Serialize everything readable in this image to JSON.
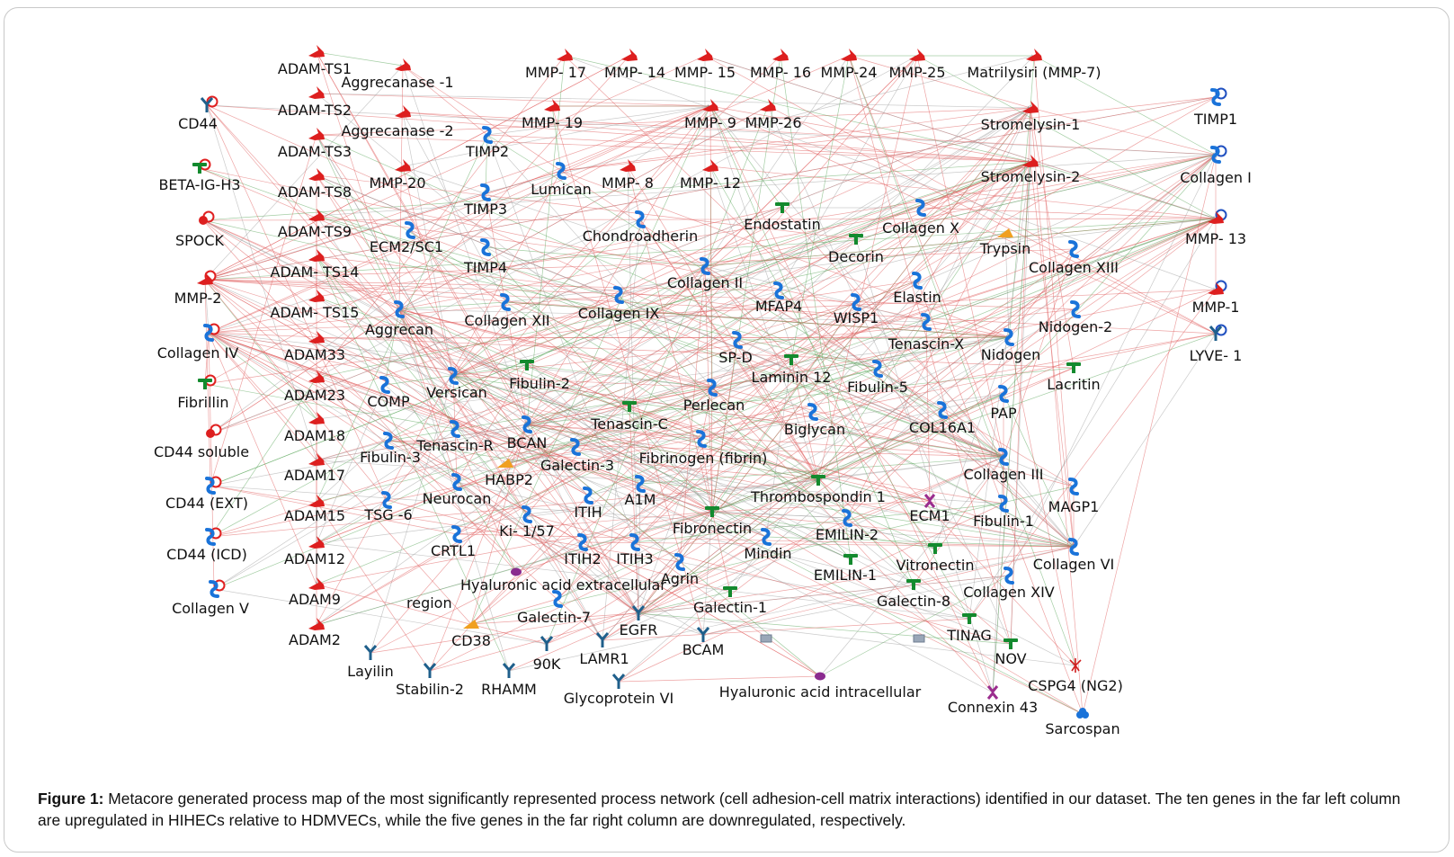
{
  "colors": {
    "activation": "#e05a5a",
    "inhibition": "#5aa65a",
    "neutral": "#a0a0a0",
    "receptor": "#1f5f8b",
    "enzyme": "#dd1f1f",
    "protein": "#1a73d9",
    "ligand": "#138a2e"
  },
  "caption": {
    "label": "Figure 1:",
    "text": "Metacore generated process map of the most significantly represented process network (cell adhesion-cell matrix interactions) identified in our dataset. The ten genes in the far left column are upregulated in HIHECs relative to HDMVECs, while the five genes in the far right column are downregulated, respectively."
  },
  "nodes": [
    {
      "id": "cd44",
      "label": "CD44",
      "icon": "receptor-icon",
      "badge": "up"
    },
    {
      "id": "betaig",
      "label": "BETA-IG-H3",
      "icon": "ligand-icon",
      "badge": "up"
    },
    {
      "id": "spock",
      "label": "SPOCK",
      "icon": "circle-icon",
      "badge": "up"
    },
    {
      "id": "mmp2",
      "label": "MMP-2",
      "icon": "protease-icon",
      "badge": "up"
    },
    {
      "id": "col4",
      "label": "Collagen IV",
      "icon": "protein-icon",
      "badge": "up"
    },
    {
      "id": "fibrillin",
      "label": "Fibrillin",
      "icon": "ligand-icon",
      "badge": "up"
    },
    {
      "id": "cd44sol",
      "label": "CD44 soluble",
      "icon": "circle-icon",
      "badge": "up"
    },
    {
      "id": "cd44ext",
      "label": "CD44 (EXT)",
      "icon": "protein-icon",
      "badge": "up"
    },
    {
      "id": "cd44icd",
      "label": "CD44 (ICD)",
      "icon": "protein-icon",
      "badge": "up"
    },
    {
      "id": "col5",
      "label": "Collagen V",
      "icon": "protein-icon",
      "badge": "up"
    },
    {
      "id": "adamts1",
      "label": "ADAM-TS1",
      "icon": "protease-icon"
    },
    {
      "id": "adamts2",
      "label": "ADAM-TS2",
      "icon": "protease-icon"
    },
    {
      "id": "adamts3",
      "label": "ADAM-TS3",
      "icon": "protease-icon"
    },
    {
      "id": "adamts8",
      "label": "ADAM-TS8",
      "icon": "protease-icon"
    },
    {
      "id": "adamts9",
      "label": "ADAM-TS9",
      "icon": "protease-icon"
    },
    {
      "id": "adamts14",
      "label": "ADAM- TS14",
      "icon": "protease-icon"
    },
    {
      "id": "adamts15",
      "label": "ADAM- TS15",
      "icon": "protease-icon"
    },
    {
      "id": "adam33",
      "label": "ADAM33",
      "icon": "protease-icon"
    },
    {
      "id": "adam23",
      "label": "ADAM23",
      "icon": "protease-icon"
    },
    {
      "id": "adam18",
      "label": "ADAM18",
      "icon": "protease-icon"
    },
    {
      "id": "adam17",
      "label": "ADAM17",
      "icon": "protease-icon"
    },
    {
      "id": "adam15",
      "label": "ADAM15",
      "icon": "protease-icon"
    },
    {
      "id": "adam12",
      "label": "ADAM12",
      "icon": "protease-icon"
    },
    {
      "id": "adam9",
      "label": "ADAM9",
      "icon": "protease-icon"
    },
    {
      "id": "adam2",
      "label": "ADAM2",
      "icon": "protease-icon"
    },
    {
      "id": "aggr1",
      "label": "Aggrecanase -1",
      "icon": "protease-icon"
    },
    {
      "id": "aggr2",
      "label": "Aggrecanase -2",
      "icon": "protease-icon"
    },
    {
      "id": "mmp20",
      "label": "MMP-20",
      "icon": "protease-icon"
    },
    {
      "id": "ecm2",
      "label": "ECM2/SC1",
      "icon": "protein-icon"
    },
    {
      "id": "aggrecan",
      "label": "Aggrecan",
      "icon": "protein-icon"
    },
    {
      "id": "comp",
      "label": "COMP",
      "icon": "protein-icon"
    },
    {
      "id": "fibulin3",
      "label": "Fibulin-3",
      "icon": "protein-icon"
    },
    {
      "id": "tsg6",
      "label": "TSG -6",
      "icon": "protein-icon"
    },
    {
      "id": "crtl1",
      "label": "CRTL1",
      "icon": "protein-icon"
    },
    {
      "id": "versican",
      "label": "Versican",
      "icon": "protein-icon"
    },
    {
      "id": "tenascinr",
      "label": "Tenascin-R",
      "icon": "protein-icon"
    },
    {
      "id": "neurocan",
      "label": "Neurocan",
      "icon": "protein-icon"
    },
    {
      "id": "habp2",
      "label": "HABP2",
      "icon": "enzyme-icon"
    },
    {
      "id": "ki157",
      "label": "Ki- 1/57",
      "icon": "protein-icon"
    },
    {
      "id": "hyaext",
      "label": "Hyaluronic acid extracellular",
      "label2": "region",
      "icon": "compound-icon"
    },
    {
      "id": "cd38",
      "label": "CD38",
      "icon": "enzyme-icon"
    },
    {
      "id": "layilin",
      "label": "Layilin",
      "icon": "receptor-icon"
    },
    {
      "id": "stabilin2",
      "label": "Stabilin-2",
      "icon": "receptor-icon"
    },
    {
      "id": "rhamm",
      "label": "RHAMM",
      "icon": "receptor-icon"
    },
    {
      "id": "k90",
      "label": "90K",
      "icon": "receptor-icon"
    },
    {
      "id": "timp2",
      "label": "TIMP2",
      "icon": "protein-icon"
    },
    {
      "id": "timp3",
      "label": "TIMP3",
      "icon": "protein-icon"
    },
    {
      "id": "timp4",
      "label": "TIMP4",
      "icon": "protein-icon"
    },
    {
      "id": "col12",
      "label": "Collagen XII",
      "icon": "protein-icon"
    },
    {
      "id": "fibulin2",
      "label": "Fibulin-2",
      "icon": "ligand-icon"
    },
    {
      "id": "bcan",
      "label": "BCAN",
      "icon": "protein-icon"
    },
    {
      "id": "galectin3",
      "label": "Galectin-3",
      "icon": "protein-icon"
    },
    {
      "id": "itih",
      "label": "ITIH",
      "icon": "protein-icon"
    },
    {
      "id": "itih2",
      "label": "ITIH2",
      "icon": "protein-icon"
    },
    {
      "id": "itih3",
      "label": "ITIH3",
      "icon": "protein-icon"
    },
    {
      "id": "galectin7",
      "label": "Galectin-7",
      "icon": "protein-icon"
    },
    {
      "id": "laminr1",
      "label": "LAMR1",
      "icon": "receptor-icon"
    },
    {
      "id": "egfr",
      "label": "EGFR",
      "icon": "receptor-icon"
    },
    {
      "id": "glyco6",
      "label": "Glycoprotein VI",
      "icon": "receptor-icon"
    },
    {
      "id": "mmp17",
      "label": "MMP- 17",
      "icon": "protease-icon"
    },
    {
      "id": "mmp14",
      "label": "MMP- 14",
      "icon": "protease-icon"
    },
    {
      "id": "mmp15",
      "label": "MMP- 15",
      "icon": "protease-icon"
    },
    {
      "id": "mmp16",
      "label": "MMP- 16",
      "icon": "protease-icon"
    },
    {
      "id": "mmp24",
      "label": "MMP-24",
      "icon": "protease-icon"
    },
    {
      "id": "mmp25",
      "label": "MMP-25",
      "icon": "protease-icon"
    },
    {
      "id": "mmp7",
      "label": "Matrilysiri (MMP-7)",
      "icon": "protease-icon"
    },
    {
      "id": "mmp19",
      "label": "MMP- 19",
      "icon": "protease-icon"
    },
    {
      "id": "mmp9",
      "label": "MMP- 9",
      "icon": "protease-icon"
    },
    {
      "id": "mmp26",
      "label": "MMP-26",
      "icon": "protease-icon"
    },
    {
      "id": "lumican",
      "label": "Lumican",
      "icon": "protein-icon"
    },
    {
      "id": "mmp8",
      "label": "MMP- 8",
      "icon": "protease-icon"
    },
    {
      "id": "mmp12",
      "label": "MMP- 12",
      "icon": "protease-icon"
    },
    {
      "id": "chondro",
      "label": "Chondroadherin",
      "icon": "protein-icon"
    },
    {
      "id": "col9",
      "label": "Collagen IX",
      "icon": "protein-icon"
    },
    {
      "id": "col2",
      "label": "Collagen II",
      "icon": "protein-icon"
    },
    {
      "id": "tenascinc",
      "label": "Tenascin-C",
      "icon": "ligand-icon"
    },
    {
      "id": "fibrinogen",
      "label": "Fibrinogen (fibrin)",
      "icon": "protein-icon"
    },
    {
      "id": "a1m",
      "label": "A1M",
      "icon": "protein-icon"
    },
    {
      "id": "fibronectin",
      "label": "Fibronectin",
      "icon": "ligand-icon"
    },
    {
      "id": "agrin",
      "label": "Agrin",
      "icon": "protein-icon"
    },
    {
      "id": "galectin1",
      "label": "Galectin-1",
      "icon": "ligand-icon"
    },
    {
      "id": "bcam",
      "label": "BCAM",
      "icon": "receptor-icon"
    },
    {
      "id": "endostatin",
      "label": "Endostatin",
      "icon": "ligand-icon"
    },
    {
      "id": "mfap4",
      "label": "MFAP4",
      "icon": "protein-icon"
    },
    {
      "id": "spd",
      "label": "SP-D",
      "icon": "protein-icon"
    },
    {
      "id": "laminin12",
      "label": "Laminin 12",
      "icon": "ligand-icon"
    },
    {
      "id": "perlecan",
      "label": "Perlecan",
      "icon": "protein-icon"
    },
    {
      "id": "biglycan",
      "label": "Biglycan",
      "icon": "protein-icon"
    },
    {
      "id": "thrombo1",
      "label": "Thrombospondin 1",
      "icon": "ligand-icon"
    },
    {
      "id": "mindin",
      "label": "Mindin",
      "icon": "protein-icon"
    },
    {
      "id": "emilin2",
      "label": "EMILIN-2",
      "icon": "protein-icon"
    },
    {
      "id": "emilin1",
      "label": "EMILIN-1",
      "icon": "ligand-icon"
    },
    {
      "id": "hyaint",
      "label": "Hyaluronic acid intracellular",
      "icon": "compound-icon"
    },
    {
      "id": "decorin",
      "label": "Decorin",
      "icon": "ligand-icon"
    },
    {
      "id": "wisp1",
      "label": "WISP1",
      "icon": "protein-icon"
    },
    {
      "id": "fibulin5",
      "label": "Fibulin-5",
      "icon": "protein-icon"
    },
    {
      "id": "col16a1",
      "label": "COL16A1",
      "icon": "protein-icon"
    },
    {
      "id": "ecm1",
      "label": "ECM1",
      "icon": "channel-icon"
    },
    {
      "id": "vitronectin",
      "label": "Vitronectin",
      "icon": "ligand-icon"
    },
    {
      "id": "galectin8",
      "label": "Galectin-8",
      "icon": "ligand-icon"
    },
    {
      "id": "col10",
      "label": "Collagen X",
      "icon": "protein-icon"
    },
    {
      "id": "trypsin",
      "label": "Trypsin",
      "icon": "enzyme-icon"
    },
    {
      "id": "elastin",
      "label": "Elastin",
      "icon": "protein-icon"
    },
    {
      "id": "tenascinx",
      "label": "Tenascin-X",
      "icon": "protein-icon"
    },
    {
      "id": "nidogen",
      "label": "Nidogen",
      "icon": "protein-icon"
    },
    {
      "id": "stromelysin1",
      "label": "Stromelysin-1",
      "icon": "protease-icon"
    },
    {
      "id": "stromelysin2",
      "label": "Stromelysin-2",
      "icon": "protease-icon"
    },
    {
      "id": "col13",
      "label": "Collagen XIII",
      "icon": "protein-icon"
    },
    {
      "id": "nidogen2",
      "label": "Nidogen-2",
      "icon": "protein-icon"
    },
    {
      "id": "lacritin",
      "label": "Lacritin",
      "icon": "ligand-icon"
    },
    {
      "id": "pap",
      "label": "PAP",
      "icon": "protein-icon"
    },
    {
      "id": "col3",
      "label": "Collagen III",
      "icon": "protein-icon"
    },
    {
      "id": "fibulin1",
      "label": "Fibulin-1",
      "icon": "protein-icon"
    },
    {
      "id": "magp1",
      "label": "MAGP1",
      "icon": "protein-icon"
    },
    {
      "id": "col6",
      "label": "Collagen VI",
      "icon": "protein-icon"
    },
    {
      "id": "col14",
      "label": "Collagen XIV",
      "icon": "protein-icon"
    },
    {
      "id": "tinag",
      "label": "TINAG",
      "icon": "ligand-icon"
    },
    {
      "id": "nov",
      "label": "NOV",
      "icon": "ligand-icon"
    },
    {
      "id": "connexin43",
      "label": "Connexin 43",
      "icon": "channel-icon"
    },
    {
      "id": "cspg4",
      "label": "CSPG4 (NG2)",
      "icon": "receptor-red-icon"
    },
    {
      "id": "sarcospan",
      "label": "Sarcospan",
      "icon": "cloud-icon"
    },
    {
      "id": "timp1",
      "label": "TIMP1",
      "icon": "protein-icon",
      "badge": "down"
    },
    {
      "id": "col1",
      "label": "Collagen I",
      "icon": "protein-icon",
      "badge": "down"
    },
    {
      "id": "mmp13",
      "label": "MMP- 13",
      "icon": "protease-icon",
      "badge": "down"
    },
    {
      "id": "mmp1",
      "label": "MMP-1",
      "icon": "protease-icon",
      "badge": "down"
    },
    {
      "id": "lyve1",
      "label": "LYVE- 1",
      "icon": "receptor-icon",
      "badge": "down"
    },
    {
      "id": "gray1",
      "label": "",
      "icon": "square-icon"
    },
    {
      "id": "gray2",
      "label": "",
      "icon": "square-icon"
    }
  ]
}
